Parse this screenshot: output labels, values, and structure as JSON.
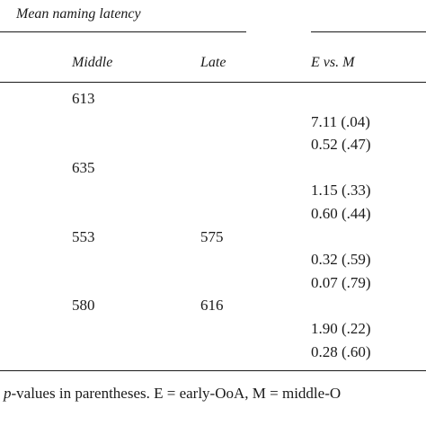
{
  "table": {
    "group_heading": "Mean naming latency",
    "columns": {
      "middle": "Middle",
      "late": "Late",
      "e_vs_m": "E vs. M"
    },
    "rows": [
      {
        "middle": "613",
        "late": "",
        "e_vs_m": ""
      },
      {
        "middle": "",
        "late": "",
        "e_vs_m": "7.11 (.04)"
      },
      {
        "middle": "",
        "late": "",
        "e_vs_m": "0.52 (.47)"
      },
      {
        "middle": "635",
        "late": "",
        "e_vs_m": ""
      },
      {
        "middle": "",
        "late": "",
        "e_vs_m": "1.15 (.33)"
      },
      {
        "middle": "",
        "late": "",
        "e_vs_m": "0.60 (.44)"
      },
      {
        "middle": "553",
        "late": "575",
        "e_vs_m": ""
      },
      {
        "middle": "",
        "late": "",
        "e_vs_m": "0.32 (.59)"
      },
      {
        "middle": "",
        "late": "",
        "e_vs_m": "0.07 (.79)"
      },
      {
        "middle": "580",
        "late": "616",
        "e_vs_m": ""
      },
      {
        "middle": "",
        "late": "",
        "e_vs_m": "1.90 (.22)"
      },
      {
        "middle": "",
        "late": "",
        "e_vs_m": "0.28 (.60)"
      }
    ]
  },
  "footnote": {
    "p_symbol": "p",
    "text": "-values in parentheses. E = early-OoA, M = middle-O"
  }
}
